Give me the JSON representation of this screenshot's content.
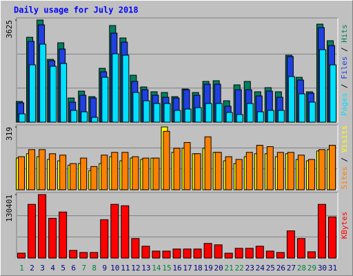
{
  "chart_data": {
    "type": "bar",
    "title": "Daily usage for July 2018",
    "categories": [
      "1",
      "2",
      "3",
      "4",
      "5",
      "6",
      "7",
      "8",
      "9",
      "10",
      "11",
      "12",
      "13",
      "14",
      "15",
      "16",
      "17",
      "18",
      "19",
      "20",
      "21",
      "22",
      "23",
      "24",
      "25",
      "26",
      "27",
      "28",
      "29",
      "30",
      "31"
    ],
    "category_colors": [
      "#008040",
      "#000080",
      "#000080",
      "#000080",
      "#000080",
      "#000080",
      "#008040",
      "#008040",
      "#000080",
      "#000080",
      "#000080",
      "#000080",
      "#000080",
      "#008040",
      "#008040",
      "#000080",
      "#000080",
      "#000080",
      "#000080",
      "#000080",
      "#008040",
      "#008040",
      "#000080",
      "#000080",
      "#000080",
      "#000080",
      "#000080",
      "#008040",
      "#008040",
      "#000080",
      "#000080"
    ],
    "panels": [
      {
        "ylim": [
          0,
          3625
        ],
        "yticks": [
          3625
        ],
        "series": [
          {
            "name": "Hits",
            "color": "#008060",
            "values": [
              735,
              3012,
              3625,
              2229,
              2817,
              857,
              1102,
              906,
              1910,
              3429,
              2988,
              1666,
              1249,
              1078,
              1053,
              906,
              1176,
              1053,
              1445,
              1470,
              759,
              1323,
              1445,
              1078,
              1225,
              1078,
              2376,
              1592,
              1078,
              3478,
              2890
            ]
          },
          {
            "name": "Files",
            "color": "#2040e0",
            "values": [
              686,
              2866,
              3453,
              2180,
              2596,
              710,
              955,
              857,
              1788,
              3160,
              2841,
              1445,
              1151,
              955,
              882,
              857,
              1151,
              955,
              1347,
              1347,
              563,
              1151,
              1151,
              931,
              1102,
              882,
              2327,
              1494,
              1029,
              3356,
              2719
            ]
          },
          {
            "name": "Pages",
            "color": "#00e0ff",
            "values": [
              294,
              2033,
              2768,
              1984,
              2082,
              416,
              367,
              171,
              1592,
              2425,
              2376,
              1053,
              759,
              661,
              661,
              416,
              465,
              514,
              661,
              661,
              343,
              269,
              661,
              367,
              416,
              416,
              1617,
              1004,
              710,
              2572,
              2033
            ]
          }
        ]
      },
      {
        "ylim": [
          0,
          319
        ],
        "yticks": [
          319
        ],
        "series": [
          {
            "name": "Visits",
            "color": "#ffff00",
            "values": [
              161,
              183,
              168,
              154,
              147,
              125,
              133,
              97,
              133,
              168,
              147,
              161,
              154,
              161,
              319,
              190,
              211,
              183,
              211,
              190,
              147,
              133,
              168,
              183,
              183,
              168,
              183,
              154,
              147,
              197,
              204
            ]
          },
          {
            "name": "Sites",
            "color": "#ff8000",
            "values": [
              168,
              204,
              204,
              183,
              176,
              133,
              161,
              118,
              176,
              190,
              190,
              168,
              161,
              161,
              297,
              211,
              240,
              183,
              269,
              190,
              168,
              154,
              190,
              226,
              219,
              190,
              190,
              176,
              154,
              204,
              226
            ]
          }
        ]
      },
      {
        "ylim": [
          0,
          130401
        ],
        "yticks": [
          130401
        ],
        "series": [
          {
            "name": "KBytes",
            "color": "#ff0000",
            "values": [
              10031,
              110341,
              130401,
              81681,
              94578,
              15763,
              11464,
              11464,
              78815,
              110341,
              107475,
              40124,
              24361,
              14330,
              14330,
              18629,
              18629,
              18629,
              30093,
              27227,
              10031,
              20062,
              20062,
              24361,
              14330,
              11464,
              55887,
              40124,
              12897,
              110341,
              84547
            ]
          }
        ]
      }
    ]
  }
}
